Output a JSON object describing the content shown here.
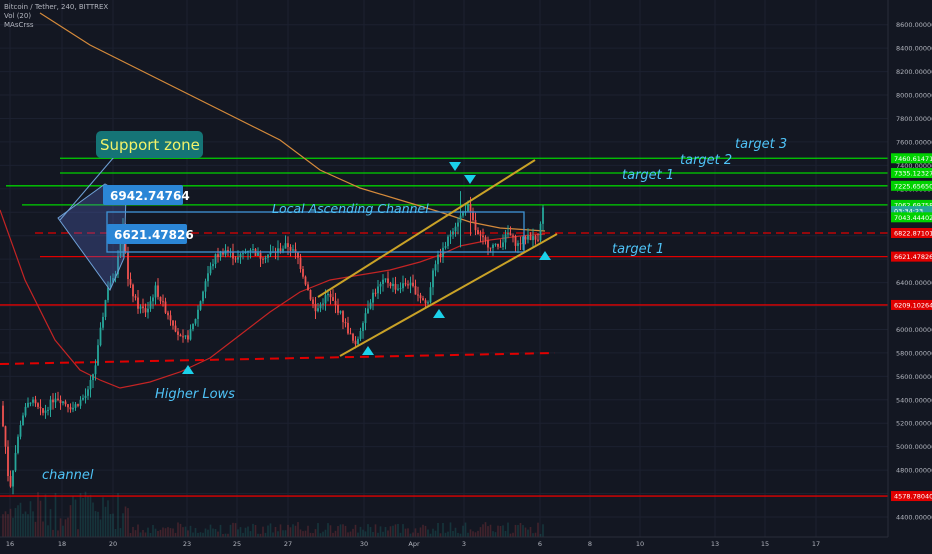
{
  "header": {
    "symbol_line": "Bitcoin / Tether, 240, BITTREX",
    "volume_label": "Vol (20)",
    "indicator_label": "MAsCrss"
  },
  "colors": {
    "background": "#131722",
    "up": "#26a69a",
    "down": "#ef5350",
    "target": "#00d200",
    "level_red": "#e00000",
    "channel": "#c9a227",
    "cyan": "#1bd1ea",
    "ma_fast": "#c42424",
    "ma_slow": "#d58a3b"
  },
  "chart_data": {
    "type": "candlestick",
    "title": "Bitcoin / Tether, 240, BITTREX",
    "x_ticks": [
      "16",
      "18",
      "20",
      "23",
      "25",
      "27",
      "30",
      "Apr",
      "3",
      "6",
      "8",
      "10",
      "13",
      "15",
      "17"
    ],
    "y_ticks": [
      "8600.000000",
      "8400.000000",
      "8200.000000",
      "8000.000000",
      "7800.000000",
      "7600.000000",
      "7400.000000",
      "7200.000000",
      "7000.000000",
      "6800.000000",
      "6600.000000",
      "6400.000000",
      "6200.000000",
      "6000.000000",
      "5800.000000",
      "5600.000000",
      "5400.000000",
      "5200.000000",
      "5000.000000",
      "4800.000000",
      "4600.000000",
      "4400.000000"
    ],
    "ylim": [
      4300,
      8720
    ],
    "price_levels": [
      {
        "label": "7460.61471",
        "value": 7460.6,
        "color": "#00d200"
      },
      {
        "label": "7335.12327",
        "value": 7335.1,
        "color": "#00d200"
      },
      {
        "label": "7225.65650",
        "value": 7225.7,
        "color": "#00d200"
      },
      {
        "label": "7062.69758",
        "value": 7062.7,
        "color": "#00d200"
      },
      {
        "label": "03:34:23",
        "value": 7010,
        "color": "#26a69a"
      },
      {
        "label": "7043.44402",
        "value": 6957,
        "color": "#00d200"
      },
      {
        "label": "6822.87101",
        "value": 6822.9,
        "color": "#e00000"
      },
      {
        "label": "6621.47826",
        "value": 6621.5,
        "color": "#e00000"
      },
      {
        "label": "6209.10264",
        "value": 6209.1,
        "color": "#e00000"
      },
      {
        "label": "4578.78040",
        "value": 4578.8,
        "color": "#e00000"
      }
    ],
    "annotations": {
      "support_zone": "Support zone",
      "price_high": "6942.74764",
      "price_low": "6621.47826",
      "channel_label": "Local Ascending Channel",
      "target_1a": "target 1",
      "target_1b": "target 1",
      "target_2": "target 2",
      "target_3": "target 3",
      "higher_lows": "Higher Lows",
      "channel": "channel"
    }
  }
}
